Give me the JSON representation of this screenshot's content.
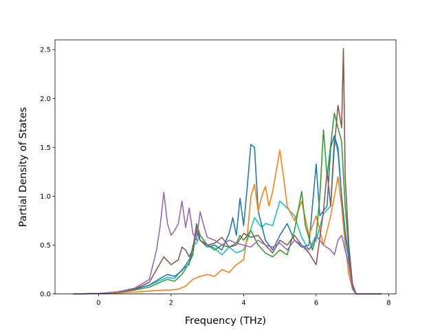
{
  "chart_data": {
    "type": "line",
    "title": "",
    "xlabel": "Frequency (THz)",
    "ylabel": "Partial Density of States",
    "xlim": [
      -1.2,
      8.2
    ],
    "ylim": [
      0,
      2.6
    ],
    "xticks": [
      0,
      2,
      4,
      6,
      8
    ],
    "yticks": [
      0.0,
      0.5,
      1.0,
      1.5,
      2.0,
      2.5
    ],
    "xtick_labels": [
      "0",
      "2",
      "4",
      "6",
      "8"
    ],
    "ytick_labels": [
      "0.0",
      "0.5",
      "1.0",
      "1.5",
      "2.0",
      "2.5"
    ],
    "grid": false,
    "legend": "none",
    "series": [
      {
        "color": "#17becf",
        "points": [
          [
            -0.7,
            0
          ],
          [
            0,
            0.005
          ],
          [
            0.5,
            0.02
          ],
          [
            1.0,
            0.05
          ],
          [
            1.4,
            0.09
          ],
          [
            1.7,
            0.14
          ],
          [
            1.9,
            0.17
          ],
          [
            2.1,
            0.16
          ],
          [
            2.3,
            0.25
          ],
          [
            2.5,
            0.3
          ],
          [
            2.6,
            0.5
          ],
          [
            2.7,
            0.52
          ],
          [
            2.8,
            0.6
          ],
          [
            3.0,
            0.5
          ],
          [
            3.2,
            0.47
          ],
          [
            3.4,
            0.4
          ],
          [
            3.6,
            0.48
          ],
          [
            3.8,
            0.42
          ],
          [
            4.0,
            0.45
          ],
          [
            4.1,
            0.55
          ],
          [
            4.3,
            0.78
          ],
          [
            4.5,
            0.68
          ],
          [
            4.6,
            0.72
          ],
          [
            4.8,
            0.7
          ],
          [
            5.0,
            0.95
          ],
          [
            5.2,
            0.88
          ],
          [
            5.4,
            0.8
          ],
          [
            5.6,
            0.58
          ],
          [
            5.8,
            0.45
          ],
          [
            6.0,
            0.55
          ],
          [
            6.2,
            0.82
          ],
          [
            6.4,
            0.9
          ],
          [
            6.5,
            1.6
          ],
          [
            6.6,
            1.45
          ],
          [
            6.7,
            1.0
          ],
          [
            6.8,
            0.65
          ],
          [
            6.9,
            0.4
          ],
          [
            7.0,
            0.1
          ],
          [
            7.1,
            0
          ],
          [
            7.8,
            0
          ]
        ]
      },
      {
        "color": "#1f77b4",
        "points": [
          [
            -0.7,
            0
          ],
          [
            0,
            0.005
          ],
          [
            0.5,
            0.02
          ],
          [
            1.0,
            0.05
          ],
          [
            1.4,
            0.09
          ],
          [
            1.7,
            0.16
          ],
          [
            1.9,
            0.2
          ],
          [
            2.1,
            0.18
          ],
          [
            2.3,
            0.24
          ],
          [
            2.5,
            0.35
          ],
          [
            2.6,
            0.42
          ],
          [
            2.7,
            0.65
          ],
          [
            2.8,
            0.55
          ],
          [
            3.0,
            0.48
          ],
          [
            3.2,
            0.5
          ],
          [
            3.4,
            0.45
          ],
          [
            3.6,
            0.62
          ],
          [
            3.7,
            0.78
          ],
          [
            3.8,
            0.6
          ],
          [
            3.9,
            0.98
          ],
          [
            4.0,
            0.7
          ],
          [
            4.1,
            1.1
          ],
          [
            4.2,
            1.53
          ],
          [
            4.3,
            1.5
          ],
          [
            4.4,
            0.85
          ],
          [
            4.5,
            0.7
          ],
          [
            4.6,
            0.55
          ],
          [
            4.8,
            0.45
          ],
          [
            5.0,
            0.6
          ],
          [
            5.2,
            0.72
          ],
          [
            5.4,
            0.55
          ],
          [
            5.6,
            0.48
          ],
          [
            5.8,
            0.5
          ],
          [
            6.0,
            1.33
          ],
          [
            6.1,
            0.8
          ],
          [
            6.3,
            0.9
          ],
          [
            6.4,
            1.5
          ],
          [
            6.5,
            1.62
          ],
          [
            6.6,
            1.5
          ],
          [
            6.7,
            1.0
          ],
          [
            6.8,
            0.6
          ],
          [
            6.9,
            0.35
          ],
          [
            7.0,
            0.08
          ],
          [
            7.1,
            0
          ],
          [
            7.8,
            0
          ]
        ]
      },
      {
        "color": "#ff7f0e",
        "points": [
          [
            -0.7,
            0
          ],
          [
            0,
            0.003
          ],
          [
            0.5,
            0.01
          ],
          [
            1.0,
            0.02
          ],
          [
            1.4,
            0.03
          ],
          [
            1.8,
            0.04
          ],
          [
            2.0,
            0.04
          ],
          [
            2.2,
            0.05
          ],
          [
            2.4,
            0.08
          ],
          [
            2.6,
            0.15
          ],
          [
            2.8,
            0.18
          ],
          [
            3.0,
            0.2
          ],
          [
            3.2,
            0.18
          ],
          [
            3.4,
            0.25
          ],
          [
            3.6,
            0.22
          ],
          [
            3.8,
            0.3
          ],
          [
            4.0,
            0.35
          ],
          [
            4.1,
            0.6
          ],
          [
            4.2,
            1.0
          ],
          [
            4.3,
            1.12
          ],
          [
            4.4,
            0.85
          ],
          [
            4.5,
            1.0
          ],
          [
            4.6,
            1.1
          ],
          [
            4.7,
            0.9
          ],
          [
            4.8,
            1.05
          ],
          [
            5.0,
            1.47
          ],
          [
            5.1,
            1.2
          ],
          [
            5.2,
            0.9
          ],
          [
            5.4,
            0.75
          ],
          [
            5.6,
            0.95
          ],
          [
            5.8,
            0.6
          ],
          [
            6.0,
            0.8
          ],
          [
            6.2,
            0.5
          ],
          [
            6.4,
            0.8
          ],
          [
            6.6,
            1.2
          ],
          [
            6.7,
            0.9
          ],
          [
            6.8,
            0.5
          ],
          [
            6.9,
            0.2
          ],
          [
            7.0,
            0.05
          ],
          [
            7.1,
            0
          ],
          [
            7.8,
            0
          ]
        ]
      },
      {
        "color": "#2ca02c",
        "points": [
          [
            -0.7,
            0
          ],
          [
            0,
            0.005
          ],
          [
            0.5,
            0.015
          ],
          [
            1.0,
            0.04
          ],
          [
            1.4,
            0.07
          ],
          [
            1.7,
            0.12
          ],
          [
            1.9,
            0.15
          ],
          [
            2.1,
            0.13
          ],
          [
            2.3,
            0.2
          ],
          [
            2.5,
            0.32
          ],
          [
            2.6,
            0.4
          ],
          [
            2.7,
            0.72
          ],
          [
            2.8,
            0.6
          ],
          [
            3.0,
            0.5
          ],
          [
            3.2,
            0.45
          ],
          [
            3.4,
            0.5
          ],
          [
            3.6,
            0.48
          ],
          [
            3.8,
            0.52
          ],
          [
            3.9,
            0.6
          ],
          [
            4.0,
            0.55
          ],
          [
            4.2,
            0.65
          ],
          [
            4.4,
            0.5
          ],
          [
            4.6,
            0.42
          ],
          [
            4.8,
            0.38
          ],
          [
            5.0,
            0.45
          ],
          [
            5.2,
            0.4
          ],
          [
            5.4,
            0.65
          ],
          [
            5.6,
            1.05
          ],
          [
            5.7,
            0.7
          ],
          [
            5.9,
            0.45
          ],
          [
            6.0,
            0.6
          ],
          [
            6.1,
            1.0
          ],
          [
            6.2,
            1.68
          ],
          [
            6.3,
            1.2
          ],
          [
            6.5,
            1.85
          ],
          [
            6.6,
            1.7
          ],
          [
            6.7,
            1.56
          ],
          [
            6.8,
            0.9
          ],
          [
            6.9,
            0.45
          ],
          [
            7.0,
            0.1
          ],
          [
            7.1,
            0
          ],
          [
            7.8,
            0
          ]
        ]
      },
      {
        "color": "#8c564b",
        "points": [
          [
            -0.7,
            0
          ],
          [
            0,
            0.005
          ],
          [
            0.5,
            0.02
          ],
          [
            1.0,
            0.05
          ],
          [
            1.4,
            0.12
          ],
          [
            1.6,
            0.25
          ],
          [
            1.8,
            0.38
          ],
          [
            2.0,
            0.3
          ],
          [
            2.2,
            0.35
          ],
          [
            2.3,
            0.48
          ],
          [
            2.4,
            0.45
          ],
          [
            2.5,
            0.38
          ],
          [
            2.6,
            0.46
          ],
          [
            2.7,
            0.7
          ],
          [
            2.8,
            0.55
          ],
          [
            3.0,
            0.5
          ],
          [
            3.2,
            0.52
          ],
          [
            3.4,
            0.58
          ],
          [
            3.6,
            0.48
          ],
          [
            3.8,
            0.5
          ],
          [
            4.0,
            0.62
          ],
          [
            4.2,
            0.58
          ],
          [
            4.4,
            0.6
          ],
          [
            4.6,
            0.5
          ],
          [
            4.8,
            0.42
          ],
          [
            5.0,
            0.55
          ],
          [
            5.2,
            0.5
          ],
          [
            5.4,
            0.6
          ],
          [
            5.6,
            0.5
          ],
          [
            5.8,
            0.42
          ],
          [
            6.0,
            0.3
          ],
          [
            6.2,
            0.85
          ],
          [
            6.3,
            1.25
          ],
          [
            6.4,
            0.9
          ],
          [
            6.5,
            1.5
          ],
          [
            6.6,
            1.93
          ],
          [
            6.7,
            1.7
          ],
          [
            6.75,
            2.51
          ],
          [
            6.8,
            1.2
          ],
          [
            6.9,
            0.5
          ],
          [
            7.0,
            0.1
          ],
          [
            7.1,
            0
          ],
          [
            7.8,
            0
          ]
        ]
      },
      {
        "color": "#9467bd",
        "points": [
          [
            -0.7,
            0
          ],
          [
            0,
            0.005
          ],
          [
            0.5,
            0.02
          ],
          [
            1.0,
            0.06
          ],
          [
            1.4,
            0.15
          ],
          [
            1.6,
            0.45
          ],
          [
            1.7,
            0.7
          ],
          [
            1.8,
            1.04
          ],
          [
            1.9,
            0.72
          ],
          [
            2.0,
            0.6
          ],
          [
            2.1,
            0.65
          ],
          [
            2.2,
            0.72
          ],
          [
            2.3,
            0.95
          ],
          [
            2.4,
            0.68
          ],
          [
            2.5,
            0.88
          ],
          [
            2.6,
            0.62
          ],
          [
            2.7,
            0.55
          ],
          [
            2.8,
            0.84
          ],
          [
            2.9,
            0.7
          ],
          [
            3.0,
            0.58
          ],
          [
            3.2,
            0.55
          ],
          [
            3.4,
            0.5
          ],
          [
            3.6,
            0.55
          ],
          [
            3.8,
            0.52
          ],
          [
            4.0,
            0.5
          ],
          [
            4.2,
            0.48
          ],
          [
            4.4,
            0.55
          ],
          [
            4.6,
            0.5
          ],
          [
            4.8,
            0.48
          ],
          [
            5.0,
            0.52
          ],
          [
            5.2,
            0.45
          ],
          [
            5.4,
            0.55
          ],
          [
            5.6,
            0.5
          ],
          [
            5.8,
            0.45
          ],
          [
            6.0,
            0.6
          ],
          [
            6.2,
            0.5
          ],
          [
            6.4,
            0.45
          ],
          [
            6.5,
            0.4
          ],
          [
            6.6,
            0.55
          ],
          [
            6.7,
            0.6
          ],
          [
            6.8,
            0.45
          ],
          [
            6.9,
            0.3
          ],
          [
            7.0,
            0.05
          ],
          [
            7.1,
            0
          ],
          [
            7.8,
            0
          ]
        ]
      }
    ]
  }
}
